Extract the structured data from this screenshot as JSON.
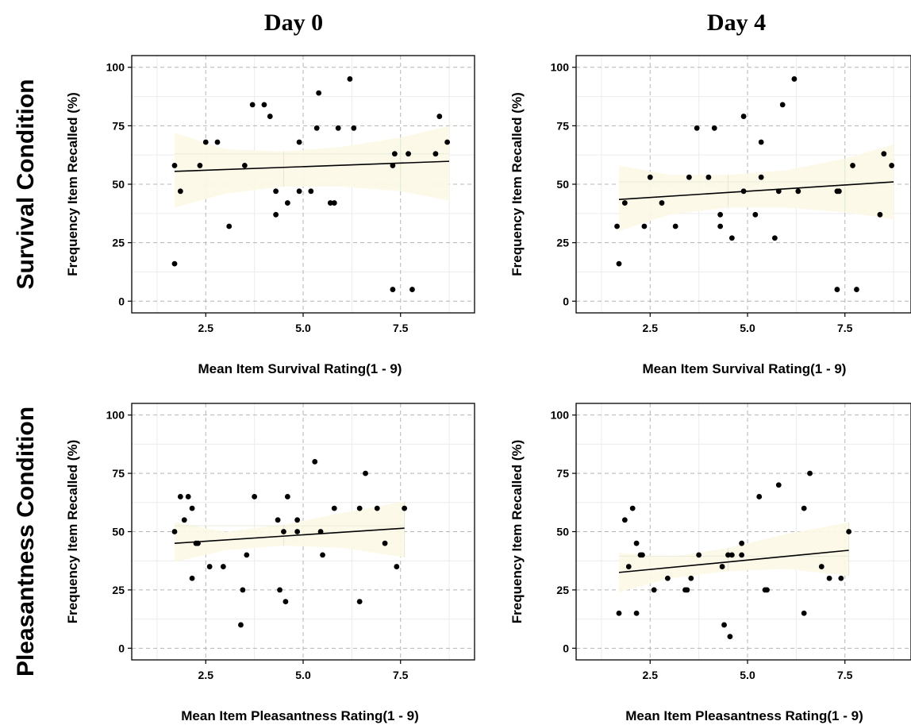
{
  "figure": {
    "column_titles": [
      "Day 0",
      "Day 4"
    ],
    "row_titles": [
      "Survival Condition",
      "Pleasantness Condition"
    ]
  },
  "colors": {
    "point": "#000000",
    "fit_line": "#000000",
    "ci_band": "#fdf8e6",
    "grid": "#b5b5b5",
    "axis": "#000000"
  },
  "chart_data": [
    {
      "id": "survival-day0",
      "type": "scatter",
      "title": "",
      "xlabel": "Mean Item Survival Rating(1 - 9)",
      "ylabel": "Frequency Item Recalled (%)",
      "xlim": [
        0.6,
        9.4
      ],
      "ylim": [
        -5,
        105
      ],
      "xticks": [
        2.5,
        5.0,
        7.5
      ],
      "xtick_labels": [
        "2.5",
        "5.0",
        "7.5"
      ],
      "yticks": [
        0,
        25,
        50,
        75,
        100
      ],
      "ytick_labels": [
        "0",
        "25",
        "50",
        "75",
        "100"
      ],
      "grid": true,
      "points": [
        [
          1.7,
          58
        ],
        [
          1.7,
          16
        ],
        [
          1.85,
          47
        ],
        [
          2.35,
          58
        ],
        [
          2.5,
          68
        ],
        [
          2.8,
          68
        ],
        [
          3.1,
          32
        ],
        [
          3.5,
          58
        ],
        [
          3.7,
          84
        ],
        [
          4.0,
          84
        ],
        [
          4.15,
          79
        ],
        [
          4.3,
          47
        ],
        [
          4.3,
          37
        ],
        [
          4.6,
          42
        ],
        [
          4.9,
          68
        ],
        [
          4.9,
          47
        ],
        [
          5.2,
          47
        ],
        [
          5.35,
          74
        ],
        [
          5.4,
          89
        ],
        [
          5.7,
          42
        ],
        [
          5.8,
          42
        ],
        [
          5.9,
          74
        ],
        [
          6.2,
          95
        ],
        [
          6.3,
          74
        ],
        [
          7.3,
          58
        ],
        [
          7.35,
          63
        ],
        [
          7.3,
          5
        ],
        [
          7.7,
          63
        ],
        [
          7.8,
          5
        ],
        [
          8.4,
          63
        ],
        [
          8.5,
          79
        ],
        [
          8.7,
          68
        ]
      ],
      "fit": {
        "x": [
          1.7,
          8.75
        ],
        "y": [
          55.5,
          59.8
        ]
      },
      "ci": {
        "x": [
          1.7,
          3.0,
          4.5,
          6.0,
          7.5,
          8.75
        ],
        "lower": [
          40,
          46,
          49,
          49,
          47,
          43
        ],
        "upper": [
          72,
          65,
          64,
          66,
          70,
          75
        ]
      }
    },
    {
      "id": "survival-day4",
      "type": "scatter",
      "title": "",
      "xlabel": "Mean Item Survival Rating(1 - 9)",
      "ylabel": "Frequency Item Recalled (%)",
      "xlim": [
        0.6,
        9.4
      ],
      "ylim": [
        -5,
        105
      ],
      "xticks": [
        2.5,
        5.0,
        7.5
      ],
      "xtick_labels": [
        "2.5",
        "5.0",
        "7.5"
      ],
      "yticks": [
        0,
        25,
        50,
        75,
        100
      ],
      "ytick_labels": [
        "0",
        "25",
        "50",
        "75",
        "100"
      ],
      "grid": true,
      "points": [
        [
          1.65,
          32
        ],
        [
          1.7,
          16
        ],
        [
          1.85,
          42
        ],
        [
          2.35,
          32
        ],
        [
          2.5,
          53
        ],
        [
          2.8,
          42
        ],
        [
          3.15,
          32
        ],
        [
          3.5,
          53
        ],
        [
          3.7,
          74
        ],
        [
          4.0,
          53
        ],
        [
          4.15,
          74
        ],
        [
          4.3,
          37
        ],
        [
          4.3,
          32
        ],
        [
          4.6,
          27
        ],
        [
          4.9,
          79
        ],
        [
          4.9,
          47
        ],
        [
          5.2,
          37
        ],
        [
          5.35,
          68
        ],
        [
          5.35,
          53
        ],
        [
          5.7,
          27
        ],
        [
          5.8,
          47
        ],
        [
          5.9,
          84
        ],
        [
          6.2,
          95
        ],
        [
          6.3,
          47
        ],
        [
          7.3,
          47
        ],
        [
          7.35,
          47
        ],
        [
          7.3,
          5
        ],
        [
          7.7,
          58
        ],
        [
          7.8,
          5
        ],
        [
          8.4,
          37
        ],
        [
          8.5,
          63
        ],
        [
          8.7,
          58
        ]
      ],
      "fit": {
        "x": [
          1.7,
          8.75
        ],
        "y": [
          43.5,
          51
        ]
      },
      "ci": {
        "x": [
          1.7,
          3.0,
          4.5,
          6.0,
          7.5,
          8.75
        ],
        "lower": [
          30,
          37,
          40,
          40,
          38,
          35
        ],
        "upper": [
          58,
          54,
          54,
          56,
          61,
          67
        ]
      }
    },
    {
      "id": "pleasantness-day0",
      "type": "scatter",
      "title": "",
      "xlabel": "Mean Item Pleasantness Rating(1 - 9)",
      "ylabel": "Frequency Item Recalled (%)",
      "xlim": [
        0.6,
        9.4
      ],
      "ylim": [
        -5,
        105
      ],
      "xticks": [
        2.5,
        5.0,
        7.5
      ],
      "xtick_labels": [
        "2.5",
        "5.0",
        "7.5"
      ],
      "yticks": [
        0,
        25,
        50,
        75,
        100
      ],
      "ytick_labels": [
        "0",
        "25",
        "50",
        "75",
        "100"
      ],
      "grid": true,
      "points": [
        [
          1.7,
          50
        ],
        [
          1.85,
          65
        ],
        [
          1.95,
          55
        ],
        [
          2.05,
          65
        ],
        [
          2.15,
          60
        ],
        [
          2.15,
          30
        ],
        [
          2.25,
          45
        ],
        [
          2.3,
          45
        ],
        [
          2.6,
          35
        ],
        [
          2.95,
          35
        ],
        [
          3.4,
          10
        ],
        [
          3.45,
          25
        ],
        [
          3.55,
          40
        ],
        [
          3.75,
          65
        ],
        [
          4.35,
          55
        ],
        [
          4.4,
          25
        ],
        [
          4.5,
          50
        ],
        [
          4.55,
          20
        ],
        [
          4.6,
          65
        ],
        [
          4.85,
          50
        ],
        [
          4.85,
          55
        ],
        [
          5.3,
          80
        ],
        [
          5.45,
          50
        ],
        [
          5.5,
          40
        ],
        [
          5.8,
          60
        ],
        [
          6.45,
          60
        ],
        [
          6.45,
          20
        ],
        [
          6.6,
          75
        ],
        [
          6.9,
          60
        ],
        [
          7.1,
          45
        ],
        [
          7.4,
          35
        ],
        [
          7.6,
          60
        ]
      ],
      "fit": {
        "x": [
          1.7,
          7.6
        ],
        "y": [
          45,
          51.5
        ]
      },
      "ci": {
        "x": [
          1.7,
          3.0,
          4.5,
          6.0,
          7.6
        ],
        "lower": [
          37,
          42,
          44,
          43,
          39
        ],
        "upper": [
          54,
          50,
          53,
          58,
          63
        ]
      }
    },
    {
      "id": "pleasantness-day4",
      "type": "scatter",
      "title": "",
      "xlabel": "Mean Item Pleasantness Rating(1 - 9)",
      "ylabel": "Frequency Item Recalled (%)",
      "xlim": [
        0.6,
        9.4
      ],
      "ylim": [
        -5,
        105
      ],
      "xticks": [
        2.5,
        5.0,
        7.5
      ],
      "xtick_labels": [
        "2.5",
        "5.0",
        "7.5"
      ],
      "yticks": [
        0,
        25,
        50,
        75,
        100
      ],
      "ytick_labels": [
        "0",
        "25",
        "50",
        "75",
        "100"
      ],
      "grid": true,
      "points": [
        [
          1.7,
          15
        ],
        [
          1.85,
          55
        ],
        [
          1.95,
          35
        ],
        [
          2.05,
          60
        ],
        [
          2.15,
          45
        ],
        [
          2.15,
          15
        ],
        [
          2.25,
          40
        ],
        [
          2.3,
          40
        ],
        [
          2.6,
          25
        ],
        [
          2.95,
          30
        ],
        [
          3.4,
          25
        ],
        [
          3.45,
          25
        ],
        [
          3.55,
          30
        ],
        [
          3.75,
          40
        ],
        [
          4.35,
          35
        ],
        [
          4.4,
          10
        ],
        [
          4.5,
          40
        ],
        [
          4.55,
          5
        ],
        [
          4.6,
          40
        ],
        [
          4.85,
          40
        ],
        [
          4.85,
          45
        ],
        [
          5.3,
          65
        ],
        [
          5.45,
          25
        ],
        [
          5.5,
          25
        ],
        [
          5.8,
          70
        ],
        [
          6.45,
          60
        ],
        [
          6.45,
          15
        ],
        [
          6.6,
          75
        ],
        [
          6.9,
          35
        ],
        [
          7.1,
          30
        ],
        [
          7.4,
          30
        ],
        [
          7.6,
          50
        ]
      ],
      "fit": {
        "x": [
          1.7,
          7.6
        ],
        "y": [
          32.5,
          42
        ]
      },
      "ci": {
        "x": [
          1.7,
          3.0,
          4.5,
          6.0,
          7.6
        ],
        "lower": [
          24,
          30,
          33,
          34,
          31
        ],
        "upper": [
          41,
          39,
          43,
          49,
          54
        ]
      }
    }
  ]
}
